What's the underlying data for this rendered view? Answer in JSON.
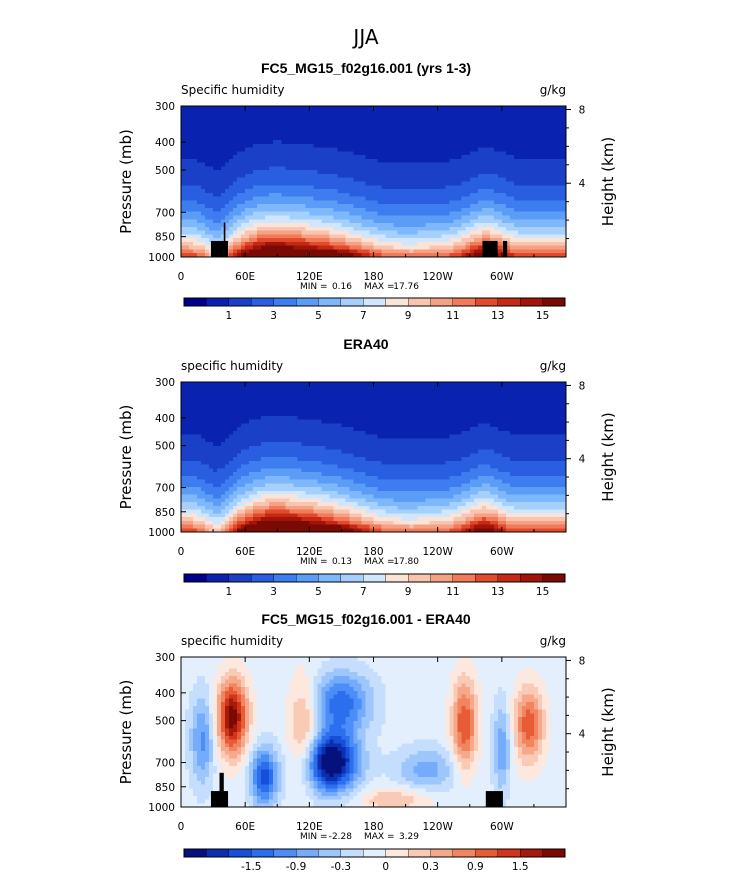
{
  "figure_title": "JJA",
  "colors": {
    "ocean_scale": [
      "#00008a",
      "#0a22b0",
      "#1a40c8",
      "#2a5ee0",
      "#3d7df0",
      "#5b9cf7",
      "#7fb7fb",
      "#a6d0fc",
      "#cfe6fd",
      "#fbe4d7",
      "#f9c5b0",
      "#f5a284",
      "#f07a5a",
      "#e24a2e",
      "#c52914",
      "#a11509",
      "#7a0a04"
    ],
    "diff_scale": [
      "#05127e",
      "#0c2fb0",
      "#1650da",
      "#2c6fee",
      "#4c8ef7",
      "#74acfb",
      "#9dc7fc",
      "#c6defd",
      "#e4effd",
      "#fce8de",
      "#f9cbb7",
      "#f5a98a",
      "#f0855f",
      "#e75c35",
      "#d1361a",
      "#a51a0a",
      "#7b0a04"
    ],
    "terrain": "#000000"
  },
  "chart_data": [
    {
      "type": "heatmap",
      "panel_title": "FC5_MG15_f02g16.001 (yrs 1-3)",
      "field_label": "Specific humidity",
      "units": "g/kg",
      "ylabel_left": "Pressure (mb)",
      "ylabel_right": "Height (km)",
      "x_ticks": [
        "0",
        "60E",
        "120E",
        "180",
        "120W",
        "60W"
      ],
      "x_range": [
        0,
        360
      ],
      "y_ticks_pressure": [
        "300",
        "400",
        "500",
        "700",
        "850",
        "1000"
      ],
      "y_pressure_values": [
        300,
        400,
        500,
        700,
        850,
        1000
      ],
      "y_ticks_height": [
        "8",
        "4"
      ],
      "y_height_values": [
        8,
        4
      ],
      "min_label": "MIN =",
      "min_value": "0.16",
      "max_label": "MAX =",
      "max_value": "17.76",
      "colorbar_labels": [
        "1",
        "3",
        "5",
        "7",
        "9",
        "11",
        "13",
        "15"
      ],
      "colorbar_levels": [
        1,
        3,
        5,
        7,
        9,
        11,
        13,
        15
      ],
      "scale": "ocean_scale",
      "terrain": [
        [
          28,
          44,
          880,
          1000
        ],
        [
          40,
          41.5,
          760,
          880
        ],
        [
          282,
          296,
          880,
          1000
        ],
        [
          301,
          305,
          880,
          1000
        ]
      ]
    },
    {
      "type": "heatmap",
      "panel_title": "ERA40",
      "field_label": "specific humidity",
      "units": "g/kg",
      "ylabel_left": "Pressure (mb)",
      "ylabel_right": "Height (km)",
      "x_ticks": [
        "0",
        "60E",
        "120E",
        "180",
        "120W",
        "60W"
      ],
      "x_range": [
        0,
        360
      ],
      "y_ticks_pressure": [
        "300",
        "400",
        "500",
        "700",
        "850",
        "1000"
      ],
      "y_pressure_values": [
        300,
        400,
        500,
        700,
        850,
        1000
      ],
      "y_ticks_height": [
        "8",
        "4"
      ],
      "y_height_values": [
        8,
        4
      ],
      "min_label": "MIN =",
      "min_value": "0.13",
      "max_label": "MAX =",
      "max_value": "17.80",
      "colorbar_labels": [
        "1",
        "3",
        "5",
        "7",
        "9",
        "11",
        "13",
        "15"
      ],
      "colorbar_levels": [
        1,
        3,
        5,
        7,
        9,
        11,
        13,
        15
      ],
      "scale": "ocean_scale",
      "terrain": []
    },
    {
      "type": "heatmap",
      "panel_title": "FC5_MG15_f02g16.001 - ERA40",
      "field_label": "specific humidity",
      "units": "g/kg",
      "ylabel_left": "Pressure (mb)",
      "ylabel_right": "Height (km)",
      "x_ticks": [
        "0",
        "60E",
        "120E",
        "180",
        "120W",
        "60W"
      ],
      "x_range": [
        0,
        360
      ],
      "y_ticks_pressure": [
        "300",
        "400",
        "500",
        "700",
        "850",
        "1000"
      ],
      "y_pressure_values": [
        300,
        400,
        500,
        700,
        850,
        1000
      ],
      "y_ticks_height": [
        "8",
        "4"
      ],
      "y_height_values": [
        8,
        4
      ],
      "min_label": "MIN =",
      "min_value": "-2.28",
      "max_label": "MAX =",
      "max_value": "3.29",
      "colorbar_labels": [
        "-1.5",
        "-0.9",
        "-0.3",
        "0",
        "0.3",
        "0.9",
        "1.5"
      ],
      "colorbar_levels": [
        -1.5,
        -0.9,
        -0.3,
        0,
        0.3,
        0.9,
        1.5
      ],
      "scale": "diff_scale",
      "terrain": [
        [
          28,
          44,
          880,
          1000
        ],
        [
          36,
          40,
          760,
          880
        ],
        [
          285,
          301,
          880,
          1000
        ]
      ]
    }
  ]
}
